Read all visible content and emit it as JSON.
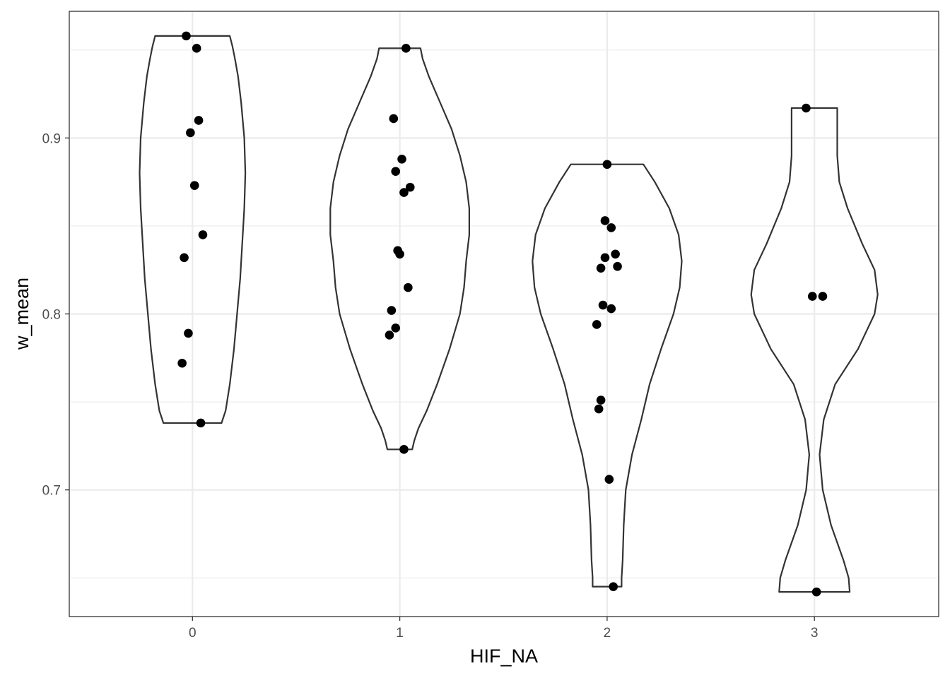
{
  "chart_data": {
    "type": "violin",
    "xlabel": "HIF_NA",
    "ylabel": "w_mean",
    "categories": [
      "0",
      "1",
      "2",
      "3"
    ],
    "ylim": [
      0.628,
      0.972
    ],
    "y_ticks": [
      0.7,
      0.8,
      0.9
    ],
    "y_tick_labels": [
      "0.7",
      "0.8",
      "0.9"
    ],
    "grid": true,
    "groups": [
      {
        "category": "0",
        "points": [
          {
            "x": -0.03,
            "y": 0.958
          },
          {
            "x": 0.02,
            "y": 0.951
          },
          {
            "x": 0.03,
            "y": 0.91
          },
          {
            "x": -0.01,
            "y": 0.903
          },
          {
            "x": 0.01,
            "y": 0.873
          },
          {
            "x": 0.05,
            "y": 0.845
          },
          {
            "x": -0.04,
            "y": 0.832
          },
          {
            "x": -0.02,
            "y": 0.789
          },
          {
            "x": -0.05,
            "y": 0.772
          },
          {
            "x": 0.04,
            "y": 0.738
          }
        ],
        "violin": [
          {
            "y": 0.738,
            "hw": 0.14
          },
          {
            "y": 0.745,
            "hw": 0.16
          },
          {
            "y": 0.76,
            "hw": 0.18
          },
          {
            "y": 0.78,
            "hw": 0.2
          },
          {
            "y": 0.8,
            "hw": 0.215
          },
          {
            "y": 0.82,
            "hw": 0.23
          },
          {
            "y": 0.84,
            "hw": 0.24
          },
          {
            "y": 0.86,
            "hw": 0.25
          },
          {
            "y": 0.88,
            "hw": 0.255
          },
          {
            "y": 0.9,
            "hw": 0.25
          },
          {
            "y": 0.92,
            "hw": 0.235
          },
          {
            "y": 0.935,
            "hw": 0.22
          },
          {
            "y": 0.945,
            "hw": 0.205
          },
          {
            "y": 0.952,
            "hw": 0.193
          },
          {
            "y": 0.958,
            "hw": 0.18
          }
        ]
      },
      {
        "category": "1",
        "points": [
          {
            "x": 0.03,
            "y": 0.951
          },
          {
            "x": -0.03,
            "y": 0.911
          },
          {
            "x": 0.01,
            "y": 0.888
          },
          {
            "x": -0.02,
            "y": 0.881
          },
          {
            "x": 0.05,
            "y": 0.872
          },
          {
            "x": 0.02,
            "y": 0.869
          },
          {
            "x": -0.01,
            "y": 0.836
          },
          {
            "x": 0.0,
            "y": 0.834
          },
          {
            "x": 0.04,
            "y": 0.815
          },
          {
            "x": -0.04,
            "y": 0.802
          },
          {
            "x": -0.02,
            "y": 0.792
          },
          {
            "x": -0.05,
            "y": 0.788
          },
          {
            "x": 0.02,
            "y": 0.723
          }
        ],
        "violin": [
          {
            "y": 0.723,
            "hw": 0.06
          },
          {
            "y": 0.728,
            "hw": 0.07
          },
          {
            "y": 0.735,
            "hw": 0.09
          },
          {
            "y": 0.745,
            "hw": 0.13
          },
          {
            "y": 0.76,
            "hw": 0.18
          },
          {
            "y": 0.78,
            "hw": 0.24
          },
          {
            "y": 0.8,
            "hw": 0.29
          },
          {
            "y": 0.815,
            "hw": 0.31
          },
          {
            "y": 0.83,
            "hw": 0.32
          },
          {
            "y": 0.845,
            "hw": 0.335
          },
          {
            "y": 0.86,
            "hw": 0.335
          },
          {
            "y": 0.875,
            "hw": 0.32
          },
          {
            "y": 0.89,
            "hw": 0.29
          },
          {
            "y": 0.905,
            "hw": 0.25
          },
          {
            "y": 0.92,
            "hw": 0.195
          },
          {
            "y": 0.935,
            "hw": 0.14
          },
          {
            "y": 0.945,
            "hw": 0.11
          },
          {
            "y": 0.951,
            "hw": 0.1
          }
        ]
      },
      {
        "category": "2",
        "points": [
          {
            "x": 0.0,
            "y": 0.885
          },
          {
            "x": -0.01,
            "y": 0.853
          },
          {
            "x": 0.02,
            "y": 0.849
          },
          {
            "x": 0.04,
            "y": 0.834
          },
          {
            "x": -0.01,
            "y": 0.832
          },
          {
            "x": 0.05,
            "y": 0.827
          },
          {
            "x": -0.03,
            "y": 0.826
          },
          {
            "x": -0.02,
            "y": 0.805
          },
          {
            "x": 0.02,
            "y": 0.803
          },
          {
            "x": -0.05,
            "y": 0.794
          },
          {
            "x": -0.03,
            "y": 0.751
          },
          {
            "x": -0.04,
            "y": 0.746
          },
          {
            "x": 0.01,
            "y": 0.706
          },
          {
            "x": 0.03,
            "y": 0.645
          }
        ],
        "violin": [
          {
            "y": 0.645,
            "hw": 0.07
          },
          {
            "y": 0.65,
            "hw": 0.07
          },
          {
            "y": 0.66,
            "hw": 0.075
          },
          {
            "y": 0.68,
            "hw": 0.08
          },
          {
            "y": 0.7,
            "hw": 0.09
          },
          {
            "y": 0.72,
            "hw": 0.12
          },
          {
            "y": 0.74,
            "hw": 0.165
          },
          {
            "y": 0.76,
            "hw": 0.205
          },
          {
            "y": 0.78,
            "hw": 0.26
          },
          {
            "y": 0.8,
            "hw": 0.32
          },
          {
            "y": 0.815,
            "hw": 0.35
          },
          {
            "y": 0.83,
            "hw": 0.36
          },
          {
            "y": 0.845,
            "hw": 0.345
          },
          {
            "y": 0.86,
            "hw": 0.3
          },
          {
            "y": 0.875,
            "hw": 0.23
          },
          {
            "y": 0.885,
            "hw": 0.175
          }
        ]
      },
      {
        "category": "3",
        "points": [
          {
            "x": -0.04,
            "y": 0.917
          },
          {
            "x": -0.01,
            "y": 0.81
          },
          {
            "x": 0.04,
            "y": 0.81
          },
          {
            "x": 0.01,
            "y": 0.642
          }
        ],
        "violin": [
          {
            "y": 0.642,
            "hw": 0.17
          },
          {
            "y": 0.65,
            "hw": 0.165
          },
          {
            "y": 0.66,
            "hw": 0.14
          },
          {
            "y": 0.68,
            "hw": 0.08
          },
          {
            "y": 0.7,
            "hw": 0.04
          },
          {
            "y": 0.72,
            "hw": 0.025
          },
          {
            "y": 0.74,
            "hw": 0.045
          },
          {
            "y": 0.76,
            "hw": 0.1
          },
          {
            "y": 0.78,
            "hw": 0.21
          },
          {
            "y": 0.8,
            "hw": 0.29
          },
          {
            "y": 0.811,
            "hw": 0.305
          },
          {
            "y": 0.825,
            "hw": 0.29
          },
          {
            "y": 0.84,
            "hw": 0.23
          },
          {
            "y": 0.86,
            "hw": 0.16
          },
          {
            "y": 0.875,
            "hw": 0.12
          },
          {
            "y": 0.89,
            "hw": 0.11
          },
          {
            "y": 0.905,
            "hw": 0.11
          },
          {
            "y": 0.917,
            "hw": 0.11
          }
        ]
      }
    ]
  }
}
